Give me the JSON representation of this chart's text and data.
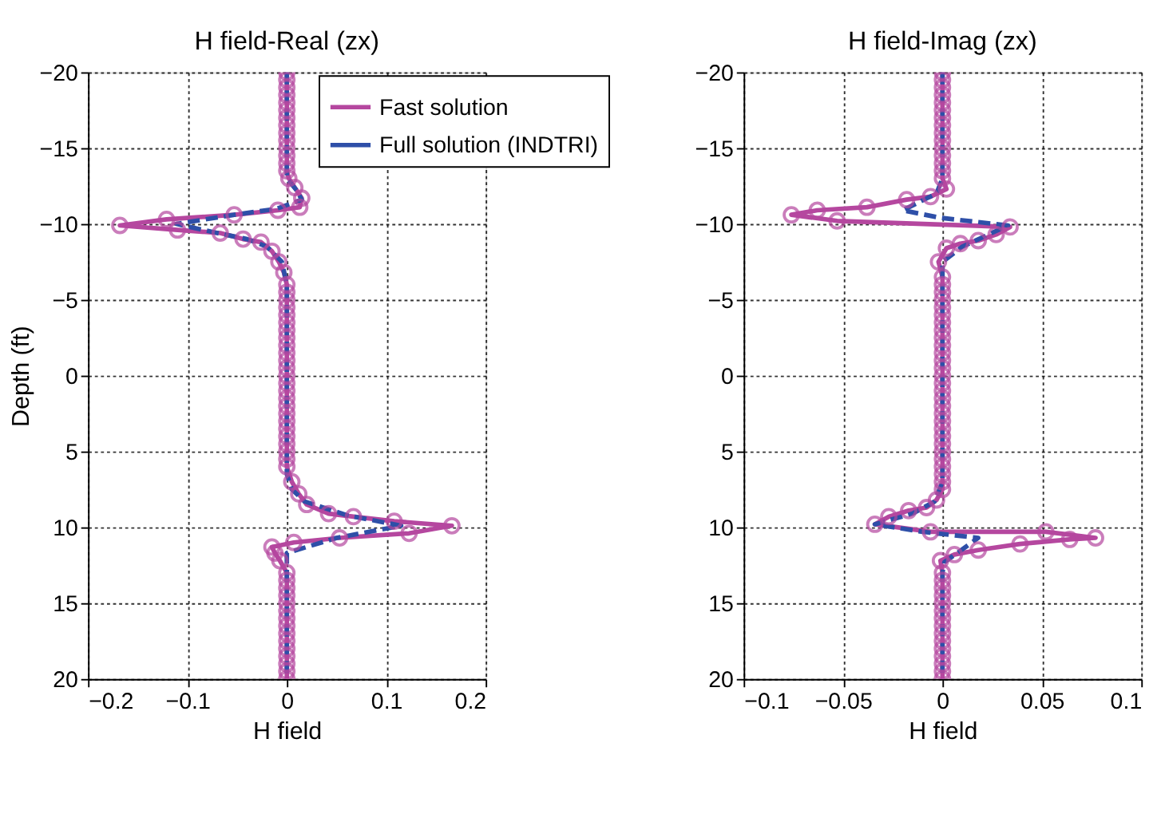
{
  "chart_data": [
    {
      "type": "line",
      "title": "H field-Real (zx)",
      "xlabel": "H field",
      "ylabel": "Depth (ft)",
      "xlim": [
        -0.2,
        0.2
      ],
      "xticks": [
        -0.2,
        -0.1,
        0,
        0.1,
        0.2
      ],
      "ylim": [
        20,
        -20
      ],
      "yticks": [
        -20,
        -15,
        -10,
        -5,
        0,
        5,
        10,
        15,
        20
      ],
      "grid": true,
      "legend": "top right",
      "series": [
        {
          "name": "Fast solution",
          "color": "#b5479f",
          "marker": "circle",
          "line_style": "solid",
          "x": [
            0,
            0,
            0,
            0,
            0,
            0,
            0,
            0,
            0,
            0,
            0,
            0,
            0,
            0,
            0.002,
            0.008,
            0.015,
            0.013,
            -0.009,
            -0.053,
            -0.121,
            -0.168,
            -0.11,
            -0.067,
            -0.044,
            -0.026,
            -0.015,
            -0.008,
            -0.003,
            0,
            0,
            0,
            0,
            0,
            0,
            0,
            0,
            0,
            0,
            0,
            0,
            0,
            0,
            0,
            0,
            0,
            0,
            0,
            0,
            0,
            0,
            0,
            0,
            0,
            0.005,
            0.012,
            0.02,
            0.042,
            0.067,
            0.108,
            0.166,
            0.123,
            0.053,
            0.007,
            -0.015,
            -0.012,
            -0.007,
            0,
            0,
            0,
            0,
            0,
            0,
            0,
            0,
            0,
            0,
            0,
            0,
            0,
            0,
            0
          ],
          "values": [
            -20,
            -19.5,
            -19,
            -18.5,
            -18,
            -17.5,
            -17,
            -16.5,
            -16,
            -15.5,
            -15,
            -14.5,
            -14,
            -13.5,
            -13,
            -12.4,
            -11.7,
            -11.1,
            -10.9,
            -10.6,
            -10.3,
            -9.9,
            -9.6,
            -9.4,
            -9.0,
            -8.8,
            -8.2,
            -7.5,
            -6.8,
            -6,
            -5.5,
            -5,
            -4.5,
            -4,
            -3.5,
            -3,
            -2.5,
            -2,
            -1.5,
            -1,
            -0.5,
            0,
            0.5,
            1,
            1.5,
            2,
            2.5,
            3,
            3.5,
            4,
            4.5,
            5,
            5.5,
            6,
            7,
            7.8,
            8.5,
            9.1,
            9.3,
            9.6,
            9.9,
            10.4,
            10.7,
            11,
            11.3,
            11.7,
            12.2,
            13,
            13.5,
            14,
            14.5,
            15,
            15.5,
            16,
            16.5,
            17,
            17.5,
            18,
            18.5,
            19,
            19.5,
            20
          ]
        },
        {
          "name": "Full solution (INDTRI)",
          "color": "#2e4fa8",
          "marker": "none",
          "line_style": "dashed",
          "x": [
            0,
            0,
            0.01,
            0.015,
            -0.01,
            -0.053,
            -0.111,
            -0.07,
            -0.04,
            -0.02,
            -0.005,
            0,
            0,
            0.005,
            0.018,
            0.06,
            0.115,
            0.05,
            0,
            0,
            0
          ],
          "values": [
            -20,
            -13,
            -12.2,
            -11.6,
            -11,
            -10.6,
            -10,
            -9.4,
            -9,
            -8.5,
            -7.5,
            -6,
            6.5,
            7.5,
            8.3,
            9.2,
            9.9,
            10.7,
            11.7,
            13,
            20
          ]
        }
      ]
    },
    {
      "type": "line",
      "title": "H field-Imag (zx)",
      "xlabel": "H field",
      "xlim": [
        -0.1,
        0.1
      ],
      "xticks": [
        -0.1,
        -0.05,
        0,
        0.05,
        0.1
      ],
      "ylim": [
        20,
        -20
      ],
      "yticks": [
        -20,
        -15,
        -10,
        -5,
        0,
        5,
        10,
        15,
        20
      ],
      "grid": true,
      "series": [
        {
          "color": "#b5479f",
          "marker": "circle",
          "line_style": "solid",
          "x": [
            0,
            0,
            0,
            0,
            0,
            0,
            0,
            0,
            0,
            0,
            0,
            0,
            0,
            0,
            0,
            0.002,
            -0.006,
            -0.018,
            -0.038,
            -0.063,
            -0.076,
            -0.053,
            0.034,
            0.027,
            0.018,
            0.009,
            0.002,
            -0.002,
            0,
            0,
            0,
            0,
            0,
            0,
            0,
            0,
            0,
            0,
            0,
            0,
            0,
            0,
            0,
            0,
            0,
            0,
            0,
            0,
            0,
            0,
            0,
            0,
            0,
            0,
            0,
            0,
            0,
            -0.003,
            -0.008,
            -0.017,
            -0.027,
            -0.034,
            -0.006,
            0.052,
            0.077,
            0.064,
            0.039,
            0.018,
            0.006,
            -0.001,
            0,
            0,
            0,
            0,
            0,
            0,
            0,
            0,
            0,
            0,
            0,
            0,
            0,
            0,
            0
          ],
          "values": [
            -20,
            -19.5,
            -19,
            -18.5,
            -18,
            -17.5,
            -17,
            -16.5,
            -16,
            -15.5,
            -15,
            -14.5,
            -14,
            -13.5,
            -13,
            -12.3,
            -11.8,
            -11.6,
            -11.1,
            -10.9,
            -10.6,
            -10.2,
            -9.8,
            -9.3,
            -8.9,
            -8.7,
            -8.4,
            -7.5,
            -6.5,
            -6,
            -5.5,
            -5,
            -4.5,
            -4,
            -3.5,
            -3,
            -2.5,
            -2,
            -1.5,
            -1,
            -0.5,
            0,
            0.5,
            1,
            1.5,
            2,
            2.5,
            3,
            3.5,
            4,
            4.5,
            5,
            5.5,
            6,
            6.5,
            7,
            7.5,
            8.2,
            8.7,
            8.9,
            9.3,
            9.8,
            10.3,
            10.3,
            10.7,
            10.8,
            11.1,
            11.5,
            11.8,
            12.2,
            13,
            13.5,
            14,
            14.5,
            15,
            15.5,
            16,
            16.5,
            17,
            17.5,
            18,
            18.5,
            19,
            19.5,
            20
          ]
        },
        {
          "color": "#2e4fa8",
          "marker": "none",
          "line_style": "dashed",
          "x": [
            0,
            0,
            -0.003,
            -0.02,
            -0.001,
            0.033,
            0.01,
            0,
            0,
            -0.004,
            -0.015,
            -0.034,
            -0.01,
            0.018,
            0.001,
            0,
            0
          ],
          "values": [
            -20,
            -13,
            -12,
            -10.9,
            -10.4,
            -9.9,
            -8.5,
            -7.5,
            7,
            8.3,
            9.1,
            9.8,
            10.3,
            10.7,
            12.3,
            13,
            20
          ]
        }
      ]
    }
  ]
}
